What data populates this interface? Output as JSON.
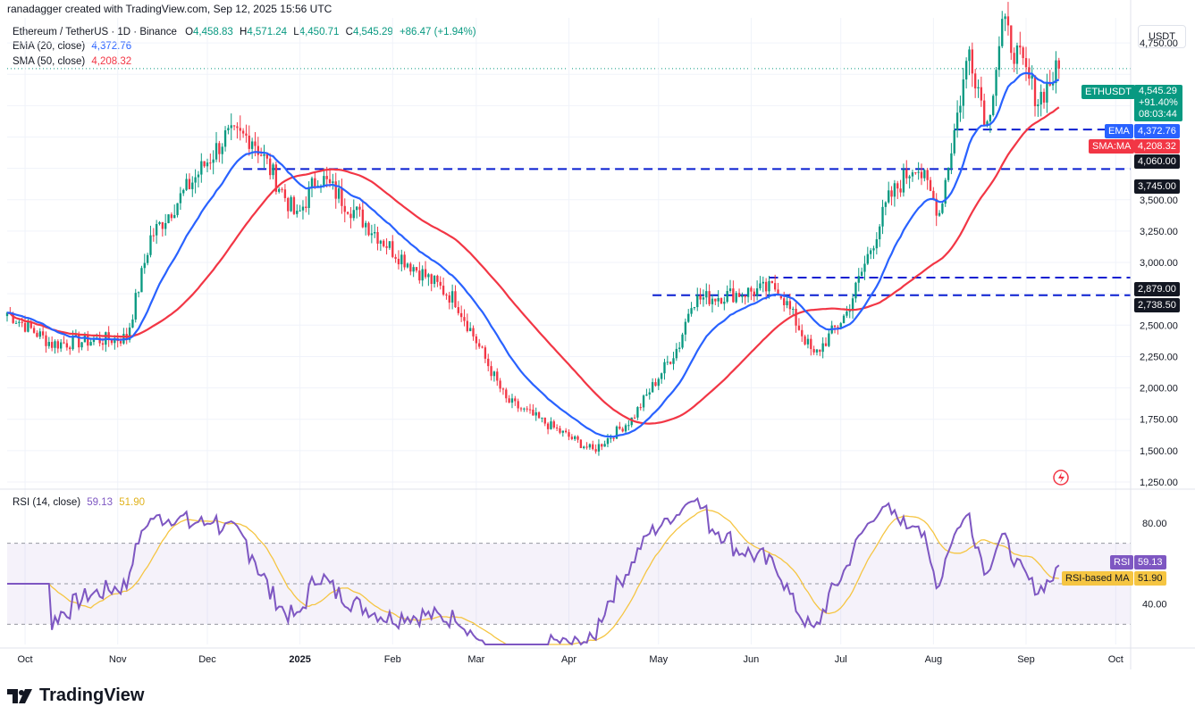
{
  "header": {
    "text": "ranadagger created with TradingView.com, Sep 12, 2025 15:56 UTC"
  },
  "legend": {
    "symbol": "Ethereum / TetherUS · 1D · Binance",
    "o_label": "O",
    "o": "4,458.83",
    "h_label": "H",
    "h": "4,571.24",
    "l_label": "L",
    "l": "4,450.71",
    "c_label": "C",
    "c": "4,545.29",
    "change": "+86.47 (+1.94%)",
    "ema_label": "EMA (20, close)",
    "ema_value": "4,372.76",
    "sma_label": "SMA (50, close)",
    "sma_value": "4,208.32"
  },
  "currency": "USDT",
  "colors": {
    "up": "#089981",
    "down": "#f23645",
    "ema": "#2962ff",
    "sma": "#f23645",
    "rsi": "#7e57c2",
    "rsi_ma": "#f5c542",
    "level": "#0a1fd1"
  },
  "price_axis": {
    "ticks": [
      "4,750.00",
      "3,500.00",
      "3,250.00",
      "3,000.00",
      "2,500.00",
      "2,250.00",
      "2,000.00",
      "1,750.00",
      "1,500.00",
      "1,250.00"
    ]
  },
  "tags": {
    "symbol_tag": "ETHUSDT",
    "price": "4,545.29",
    "change": "+91.40%",
    "countdown": "08:03:44",
    "ema_tag": "EMA",
    "ema_value": "4,372.76",
    "sma_tag": "SMA:MA",
    "sma_value": "4,208.32"
  },
  "levels": [
    "4,060.00",
    "3,745.00",
    "2,879.00",
    "2,738.50"
  ],
  "rsi": {
    "legend_label": "RSI (14, close)",
    "value": "59.13",
    "ma_value": "51.90",
    "tag_rsi": "RSI",
    "tag_ma": "RSI-based MA",
    "ticks": [
      "80.00",
      "40.00"
    ]
  },
  "time_axis": [
    "Oct",
    "Nov",
    "Dec",
    "2025",
    "Feb",
    "Mar",
    "Apr",
    "May",
    "Jun",
    "Jul",
    "Aug",
    "Sep",
    "Oct"
  ],
  "logo_text": "TradingView",
  "chart_data": {
    "type": "candlestick",
    "title": "Ethereum / TetherUS · 1D · Binance",
    "ylim": [
      1200,
      4950
    ],
    "x_start": "2024-09-25",
    "x_end": "2025-09-12",
    "key_points": {
      "x": [
        "2024-09-25",
        "2024-10-10",
        "2024-11-04",
        "2024-11-12",
        "2024-12-07",
        "2024-12-16",
        "2024-12-31",
        "2025-01-07",
        "2025-02-01",
        "2025-02-22",
        "2025-03-11",
        "2025-04-09",
        "2025-04-22",
        "2025-05-08",
        "2025-05-12",
        "2025-06-10",
        "2025-06-22",
        "2025-07-03",
        "2025-07-17",
        "2025-07-26",
        "2025-08-03",
        "2025-08-13",
        "2025-08-19",
        "2025-08-24",
        "2025-09-05",
        "2025-09-12"
      ],
      "close": [
        2600,
        2350,
        2400,
        3200,
        4000,
        4000,
        3350,
        3700,
        3100,
        2700,
        1900,
        1500,
        1750,
        2350,
        2700,
        2800,
        2250,
        2600,
        3500,
        3800,
        3400,
        4700,
        4100,
        4900,
        4300,
        4545
      ]
    },
    "ema20_end": 4372.76,
    "sma50_end": 4208.32,
    "horizontal_levels": [
      4060.0,
      3745.0,
      2879.0,
      2738.5
    ],
    "rsi": {
      "period": 14,
      "last": 59.13,
      "ma_last": 51.9,
      "overbought": 70,
      "oversold": 30,
      "ylim": [
        20,
        95
      ]
    }
  }
}
